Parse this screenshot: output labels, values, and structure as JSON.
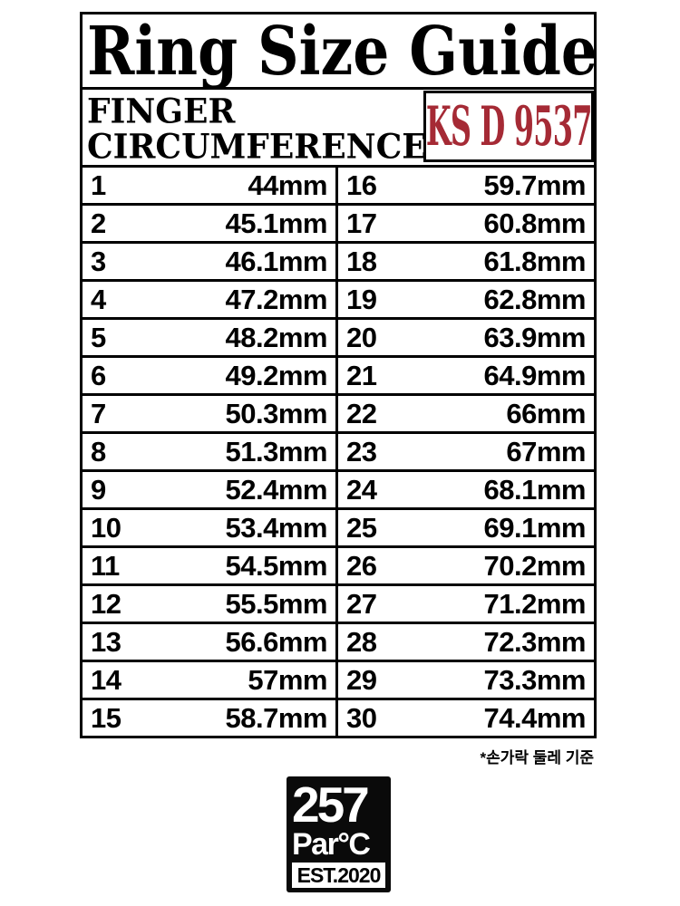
{
  "title": "Ring Size Guide",
  "header": {
    "label_line1": "FINGER",
    "label_line2": "CIRCUMFERENCE",
    "standard": "KS D 9537"
  },
  "colors": {
    "badge_red": "#A52A35",
    "ink": "#000000",
    "background": "#FFFFFF"
  },
  "chart_data": {
    "type": "table",
    "title": "Ring Size Guide",
    "subtitle": "FINGER CIRCUMFERENCE",
    "standard": "KS D 9537",
    "columns": [
      "Ring size",
      "Finger circumference"
    ],
    "layout": "two side-by-side column pairs: sizes 1-15 left, sizes 16-30 right",
    "rows": [
      [
        1,
        "44mm"
      ],
      [
        2,
        "45.1mm"
      ],
      [
        3,
        "46.1mm"
      ],
      [
        4,
        "47.2mm"
      ],
      [
        5,
        "48.2mm"
      ],
      [
        6,
        "49.2mm"
      ],
      [
        7,
        "50.3mm"
      ],
      [
        8,
        "51.3mm"
      ],
      [
        9,
        "52.4mm"
      ],
      [
        10,
        "53.4mm"
      ],
      [
        11,
        "54.5mm"
      ],
      [
        12,
        "55.5mm"
      ],
      [
        13,
        "56.6mm"
      ],
      [
        14,
        "57mm"
      ],
      [
        15,
        "58.7mm"
      ],
      [
        16,
        "59.7mm"
      ],
      [
        17,
        "60.8mm"
      ],
      [
        18,
        "61.8mm"
      ],
      [
        19,
        "62.8mm"
      ],
      [
        20,
        "63.9mm"
      ],
      [
        21,
        "64.9mm"
      ],
      [
        22,
        "66mm"
      ],
      [
        23,
        "67mm"
      ],
      [
        24,
        "68.1mm"
      ],
      [
        25,
        "69.1mm"
      ],
      [
        26,
        "70.2mm"
      ],
      [
        27,
        "71.2mm"
      ],
      [
        28,
        "72.3mm"
      ],
      [
        29,
        "73.3mm"
      ],
      [
        30,
        "74.4mm"
      ]
    ]
  },
  "table_rows": [
    {
      "l_size": "1",
      "l_value": "44mm",
      "r_size": "16",
      "r_value": "59.7mm"
    },
    {
      "l_size": "2",
      "l_value": "45.1mm",
      "r_size": "17",
      "r_value": "60.8mm"
    },
    {
      "l_size": "3",
      "l_value": "46.1mm",
      "r_size": "18",
      "r_value": "61.8mm"
    },
    {
      "l_size": "4",
      "l_value": "47.2mm",
      "r_size": "19",
      "r_value": "62.8mm"
    },
    {
      "l_size": "5",
      "l_value": "48.2mm",
      "r_size": "20",
      "r_value": "63.9mm"
    },
    {
      "l_size": "6",
      "l_value": "49.2mm",
      "r_size": "21",
      "r_value": "64.9mm"
    },
    {
      "l_size": "7",
      "l_value": "50.3mm",
      "r_size": "22",
      "r_value": "66mm"
    },
    {
      "l_size": "8",
      "l_value": "51.3mm",
      "r_size": "23",
      "r_value": "67mm"
    },
    {
      "l_size": "9",
      "l_value": "52.4mm",
      "r_size": "24",
      "r_value": "68.1mm"
    },
    {
      "l_size": "10",
      "l_value": "53.4mm",
      "r_size": "25",
      "r_value": "69.1mm"
    },
    {
      "l_size": "11",
      "l_value": "54.5mm",
      "r_size": "26",
      "r_value": "70.2mm"
    },
    {
      "l_size": "12",
      "l_value": "55.5mm",
      "r_size": "27",
      "r_value": "71.2mm"
    },
    {
      "l_size": "13",
      "l_value": "56.6mm",
      "r_size": "28",
      "r_value": "72.3mm"
    },
    {
      "l_size": "14",
      "l_value": "57mm",
      "r_size": "29",
      "r_value": "73.3mm"
    },
    {
      "l_size": "15",
      "l_value": "58.7mm",
      "r_size": "30",
      "r_value": "74.4mm"
    }
  ],
  "footnote": "*손가락 둘레 기준",
  "logo": {
    "line1": "257",
    "line2": "Par°C",
    "badge": "EST.2020"
  }
}
